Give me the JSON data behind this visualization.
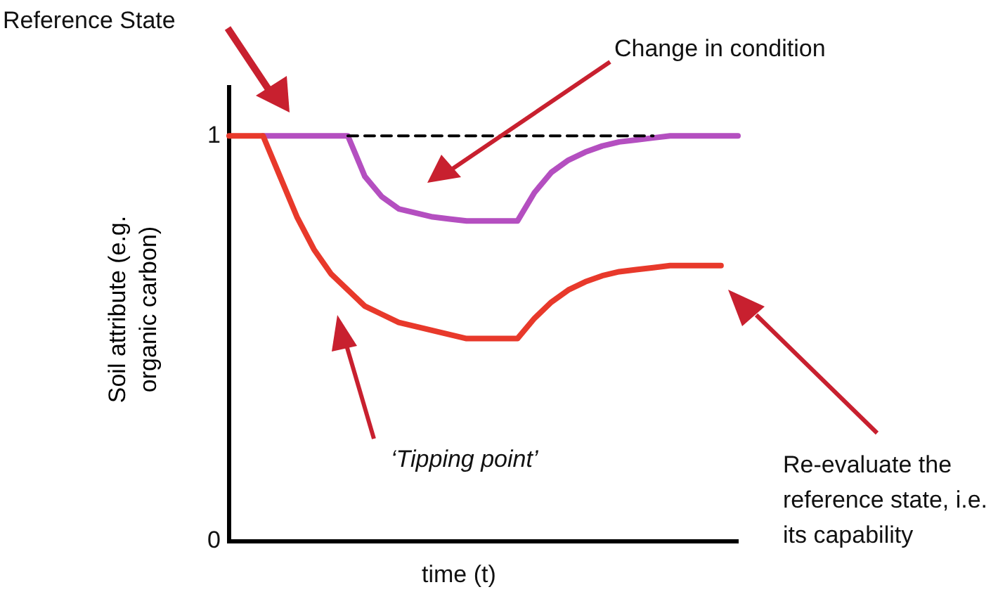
{
  "chart_data": {
    "type": "line",
    "xlabel": "time (t)",
    "ylabel": "Soil attribute (e.g. organic carbon)",
    "categories": [
      null,
      null,
      null,
      null,
      null,
      null,
      null,
      null,
      null,
      null,
      null,
      null,
      null,
      null,
      null,
      null,
      null,
      null,
      null,
      null,
      null,
      null,
      null,
      null,
      null,
      null,
      null,
      null,
      null,
      null,
      null
    ],
    "series": [
      {
        "color": "#000000",
        "line_style": "dashed",
        "values": [
          null,
          null,
          null,
          null,
          null,
          null,
          null,
          1,
          1,
          1,
          1,
          1,
          1,
          1,
          1,
          1,
          1,
          1,
          1,
          1,
          1,
          1,
          1,
          1,
          1,
          1,
          null,
          null,
          null,
          null,
          null
        ]
      },
      {
        "color": "#e8392b",
        "values": [
          1,
          1,
          1,
          0.9,
          0.8,
          0.72,
          0.66,
          0.62,
          0.58,
          0.56,
          0.54,
          0.53,
          0.52,
          0.51,
          0.5,
          0.5,
          0.5,
          0.5,
          0.55,
          0.59,
          0.62,
          0.64,
          0.655,
          0.665,
          0.67,
          0.675,
          0.68,
          0.68,
          0.68,
          0.68,
          null
        ]
      },
      {
        "color": "#b44fc0",
        "values": [
          null,
          null,
          1,
          1,
          1,
          1,
          1,
          1,
          0.9,
          0.85,
          0.82,
          0.81,
          0.8,
          0.795,
          0.79,
          0.79,
          0.79,
          0.79,
          0.86,
          0.91,
          0.94,
          0.96,
          0.975,
          0.985,
          0.99,
          0.995,
          1,
          1,
          1,
          1,
          1
        ]
      }
    ],
    "ylim": [
      0,
      1.12
    ],
    "yticks": [
      0,
      1
    ],
    "tick_labels": "y",
    "grid": false,
    "legend": false,
    "marker": "none",
    "line_style": "solid",
    "annotations": [
      "Reference State",
      "Change in condition",
      "‘Tipping point’",
      "Re-evaluate the reference state, i.e. its capability"
    ]
  }
}
